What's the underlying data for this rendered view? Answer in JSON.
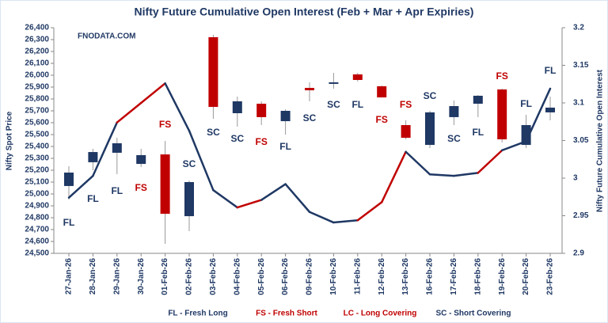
{
  "chart_data": {
    "type": "candlestick",
    "title": "Nifty Future Cumulative Open Interest (Feb + Mar + Apr Expiries)",
    "watermark": "FNODATA.COM",
    "y_label": "Nifty Spot Price",
    "y2_label": "Nifty Future Cumulative Open Interest",
    "categories": [
      "27-Jan-26",
      "28-Jan-26",
      "29-Jan-26",
      "30-Jan-26",
      "01-Feb-26",
      "02-Feb-26",
      "03-Feb-26",
      "04-Feb-26",
      "05-Feb-26",
      "06-Feb-26",
      "09-Feb-26",
      "10-Feb-26",
      "11-Feb-26",
      "12-Feb-26",
      "13-Feb-26",
      "16-Feb-26",
      "17-Feb-26",
      "18-Feb-26",
      "19-Feb-26",
      "20-Feb-26",
      "23-Feb-26"
    ],
    "open": [
      25067,
      25267,
      25347,
      25253,
      25333,
      24813,
      26320,
      25680,
      25760,
      25613,
      25873,
      25927,
      26007,
      25907,
      25580,
      25413,
      25647,
      25760,
      25880,
      25413,
      25687
    ],
    "high": [
      25233,
      25380,
      25473,
      25380,
      25447,
      25113,
      26340,
      25820,
      25780,
      25713,
      25940,
      26020,
      26020,
      25913,
      25620,
      25700,
      25787,
      25833,
      25887,
      25667,
      25820
    ],
    "low": [
      24953,
      25200,
      25167,
      25227,
      24580,
      24687,
      25633,
      25567,
      25580,
      25500,
      25780,
      25887,
      25947,
      25813,
      25460,
      25387,
      25580,
      25647,
      25433,
      25387,
      25620
    ],
    "close": [
      25180,
      25353,
      25427,
      25327,
      24833,
      25100,
      25733,
      25780,
      25647,
      25700,
      25893,
      25940,
      25960,
      25813,
      25473,
      25687,
      25740,
      25827,
      25460,
      25580,
      25727
    ],
    "colors": [
      "#1f3864",
      "#1f3864",
      "#1f3864",
      "#1f3864",
      "#c00000",
      "#1f3864",
      "#c00000",
      "#1f3864",
      "#c00000",
      "#1f3864",
      "#c00000",
      "#1f3864",
      "#c00000",
      "#c00000",
      "#c00000",
      "#1f3864",
      "#1f3864",
      "#1f3864",
      "#c00000",
      "#1f3864",
      "#1f3864"
    ],
    "line": {
      "axis": "y2",
      "values": [
        2.974,
        3.003,
        3.074,
        3.1,
        3.126,
        3.063,
        2.984,
        2.961,
        2.971,
        2.992,
        2.955,
        2.941,
        2.944,
        2.968,
        3.035,
        3.005,
        3.003,
        3.007,
        3.037,
        3.049,
        3.119
      ]
    },
    "signals": [
      "FL",
      "FL",
      "FL",
      "FS",
      "FS",
      "SC",
      "SC",
      "SC",
      "FS",
      "FL",
      "SC",
      "SC",
      "FL",
      "FS",
      "FS",
      "SC",
      "SC",
      "FL",
      "FS",
      "FL",
      "FL"
    ],
    "signal_colors": {
      "FL": "#1f3864",
      "FS": "#c00000",
      "SC": "#1f3864",
      "LC": "#c00000"
    },
    "legend": [
      {
        "text": "FL - Fresh Long",
        "color": "#1f3864"
      },
      {
        "text": "FS - Fresh Short",
        "color": "#c00000"
      },
      {
        "text": "LC - Long Covering",
        "color": "#c00000"
      },
      {
        "text": "SC - Short Covering",
        "color": "#1f3864"
      }
    ],
    "ylim": [
      24500,
      26400
    ],
    "yticks": [
      {
        "value": 24500,
        "label": "24,500"
      },
      {
        "value": 24600,
        "label": "24,600"
      },
      {
        "value": 24700,
        "label": "24,700"
      },
      {
        "value": 24800,
        "label": "24,800"
      },
      {
        "value": 24900,
        "label": "24,900"
      },
      {
        "value": 25000,
        "label": "25,000"
      },
      {
        "value": 25100,
        "label": "25,100"
      },
      {
        "value": 25200,
        "label": "25,200"
      },
      {
        "value": 25300,
        "label": "25,300"
      },
      {
        "value": 25400,
        "label": "25,400"
      },
      {
        "value": 25500,
        "label": "25,500"
      },
      {
        "value": 25600,
        "label": "25,600"
      },
      {
        "value": 25700,
        "label": "25,700"
      },
      {
        "value": 25800,
        "label": "25,800"
      },
      {
        "value": 25900,
        "label": "25,900"
      },
      {
        "value": 26000,
        "label": "26,000"
      },
      {
        "value": 26100,
        "label": "26,100"
      },
      {
        "value": 26200,
        "label": "26,200"
      },
      {
        "value": 26300,
        "label": "26,300"
      },
      {
        "value": 26400,
        "label": "26,400"
      }
    ],
    "y2lim": [
      2.9,
      3.2
    ],
    "y2ticks": [
      2.9,
      2.95,
      3,
      3.05,
      3.1,
      3.15,
      3.2
    ]
  }
}
